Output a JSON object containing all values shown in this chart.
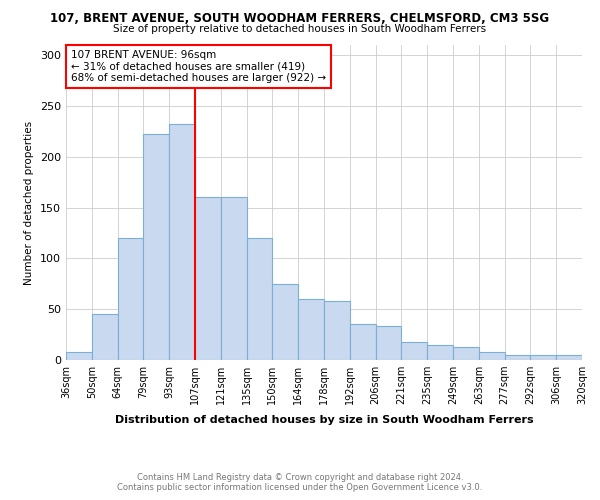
{
  "title": "107, BRENT AVENUE, SOUTH WOODHAM FERRERS, CHELMSFORD, CM3 5SG",
  "subtitle": "Size of property relative to detached houses in South Woodham Ferrers",
  "xlabel": "Distribution of detached houses by size in South Woodham Ferrers",
  "ylabel": "Number of detached properties",
  "footer_line1": "Contains HM Land Registry data © Crown copyright and database right 2024.",
  "footer_line2": "Contains public sector information licensed under the Open Government Licence v3.0.",
  "bar_labels": [
    "36sqm",
    "50sqm",
    "64sqm",
    "79sqm",
    "93sqm",
    "107sqm",
    "121sqm",
    "135sqm",
    "150sqm",
    "164sqm",
    "178sqm",
    "192sqm",
    "206sqm",
    "221sqm",
    "235sqm",
    "249sqm",
    "263sqm",
    "277sqm",
    "292sqm",
    "306sqm",
    "320sqm"
  ],
  "bar_values": [
    8,
    45,
    120,
    222,
    232,
    160,
    160,
    120,
    75,
    60,
    58,
    35,
    33,
    18,
    15,
    13,
    8,
    5,
    5,
    5
  ],
  "bar_color": "#c9daf0",
  "bar_edge_color": "#7bafd4",
  "vline_color": "red",
  "vline_pos": 4,
  "annotation_text": "107 BRENT AVENUE: 96sqm\n← 31% of detached houses are smaller (419)\n68% of semi-detached houses are larger (922) →",
  "annotation_box_color": "white",
  "annotation_box_edge_color": "red",
  "ylim": [
    0,
    310
  ],
  "yticks": [
    0,
    50,
    100,
    150,
    200,
    250,
    300
  ],
  "background_color": "white",
  "grid_color": "#cccccc"
}
